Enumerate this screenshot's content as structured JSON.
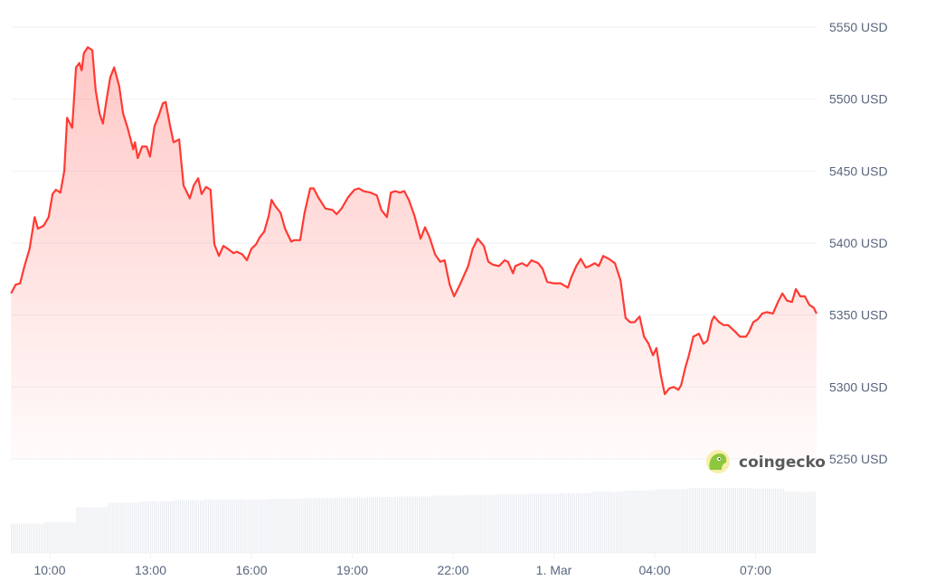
{
  "chart_data": {
    "type": "area",
    "title": "",
    "xlabel": "",
    "ylabel": "",
    "y_unit": "USD",
    "ylim": [
      5200,
      5550
    ],
    "y_ticks": [
      "5550 USD",
      "5500 USD",
      "5450 USD",
      "5400 USD",
      "5350 USD",
      "5300 USD",
      "5250 USD"
    ],
    "y_tick_values": [
      5550,
      5500,
      5450,
      5400,
      5350,
      5300,
      5250
    ],
    "x_ticks": [
      "10:00",
      "13:00",
      "16:00",
      "19:00",
      "22:00",
      "1. Mar",
      "04:00",
      "07:00"
    ],
    "grid": true,
    "line_color": "#ff3a33",
    "fill_color": "#ff3a33",
    "watermark": "coingecko",
    "series": [
      {
        "x": [
          "08:51",
          "08:59",
          "09:07",
          "09:15",
          "09:24",
          "09:33",
          "09:39",
          "09:49",
          "09:58",
          "10:05",
          "10:11",
          "10:19",
          "10:26",
          "10:31",
          "10:40",
          "10:47",
          "10:53",
          "10:57",
          "11:01",
          "11:08",
          "11:16",
          "11:22",
          "11:29",
          "11:35",
          "11:42",
          "11:48",
          "11:55",
          "12:04",
          "12:11",
          "12:19",
          "12:29",
          "12:32",
          "12:37",
          "12:45",
          "12:53",
          "12:59",
          "13:07",
          "13:14",
          "13:22",
          "13:27",
          "13:35",
          "13:41",
          "13:51",
          "13:59",
          "14:10",
          "14:17",
          "14:25",
          "14:31",
          "14:39",
          "14:47",
          "14:54",
          "15:02",
          "15:10",
          "15:18",
          "15:28",
          "15:34",
          "15:44",
          "15:52",
          "16:00",
          "16:08",
          "16:15",
          "16:23",
          "16:31",
          "16:36",
          "16:42",
          "16:52",
          "17:00",
          "17:11",
          "17:17",
          "17:27",
          "17:35",
          "17:45",
          "17:51",
          "17:59",
          "18:12",
          "18:25",
          "18:32",
          "18:41",
          "18:53",
          "19:04",
          "19:12",
          "19:20",
          "19:33",
          "19:44",
          "19:52",
          "20:02",
          "20:09",
          "20:17",
          "20:25",
          "20:33",
          "20:41",
          "20:51",
          "21:02",
          "21:10",
          "21:18",
          "21:28",
          "21:37",
          "21:45",
          "21:54",
          "22:02",
          "22:11",
          "22:19",
          "22:27",
          "22:35",
          "22:44",
          "22:55",
          "23:03",
          "23:11",
          "23:22",
          "23:32",
          "23:38",
          "23:47",
          "23:51",
          "00:03",
          "00:12",
          "00:20",
          "00:32",
          "00:40",
          "00:48",
          "00:59",
          "01:12",
          "01:25",
          "01:31",
          "01:40",
          "01:48",
          "01:57",
          "02:04",
          "02:13",
          "02:20",
          "02:28",
          "02:38",
          "02:49",
          "02:59",
          "03:08",
          "03:16",
          "03:24",
          "03:33",
          "03:41",
          "03:49",
          "03:57",
          "04:03",
          "04:11",
          "04:18",
          "04:26",
          "04:34",
          "04:42",
          "04:47",
          "04:55",
          "05:01",
          "05:09",
          "05:19",
          "05:27",
          "05:34",
          "05:42",
          "05:46",
          "05:55",
          "06:03",
          "06:11",
          "06:22",
          "06:32",
          "06:43",
          "06:48",
          "06:56",
          "07:04",
          "07:12",
          "07:20",
          "07:31",
          "07:40",
          "07:48",
          "07:56",
          "08:05",
          "08:12",
          "08:20",
          "08:28",
          "08:36",
          "08:44",
          "08:49"
        ],
        "y": [
          5365,
          5371,
          5372,
          5384,
          5396,
          5418,
          5410,
          5412,
          5418,
          5434,
          5437,
          5435,
          5450,
          5487,
          5480,
          5522,
          5525,
          5520,
          5532,
          5536,
          5534,
          5506,
          5490,
          5483,
          5501,
          5515,
          5522,
          5509,
          5490,
          5480,
          5465,
          5470,
          5459,
          5467,
          5467,
          5460,
          5481,
          5488,
          5497,
          5498,
          5481,
          5470,
          5472,
          5440,
          5431,
          5440,
          5445,
          5434,
          5439,
          5437,
          5399,
          5391,
          5398,
          5396,
          5393,
          5394,
          5392,
          5388,
          5396,
          5399,
          5404,
          5408,
          5419,
          5430,
          5426,
          5421,
          5410,
          5401,
          5402,
          5402,
          5421,
          5438,
          5438,
          5432,
          5424,
          5423,
          5420,
          5424,
          5432,
          5437,
          5438,
          5436,
          5435,
          5433,
          5423,
          5418,
          5435,
          5436,
          5435,
          5436,
          5430,
          5419,
          5403,
          5411,
          5404,
          5392,
          5387,
          5388,
          5371,
          5363,
          5370,
          5377,
          5384,
          5396,
          5403,
          5398,
          5387,
          5385,
          5384,
          5388,
          5387,
          5379,
          5384,
          5386,
          5384,
          5388,
          5386,
          5382,
          5373,
          5372,
          5372,
          5369,
          5376,
          5384,
          5389,
          5383,
          5384,
          5386,
          5384,
          5391,
          5389,
          5386,
          5374,
          5348,
          5345,
          5345,
          5349,
          5335,
          5330,
          5322,
          5327,
          5308,
          5295,
          5299,
          5300,
          5298,
          5301,
          5314,
          5322,
          5335,
          5337,
          5330,
          5332,
          5346,
          5349,
          5345,
          5343,
          5343,
          5339,
          5335,
          5335,
          5338,
          5345,
          5347,
          5351,
          5352,
          5351,
          5359,
          5365,
          5360,
          5359,
          5368,
          5363,
          5363,
          5357,
          5355,
          5351
        ]
      }
    ],
    "volume_relative_hourly": [
      0.45,
      0.47,
      0.7,
      0.77,
      0.79,
      0.81,
      0.82,
      0.82,
      0.83,
      0.84,
      0.85,
      0.86,
      0.87,
      0.88,
      0.89,
      0.9,
      0.91,
      0.92,
      0.94,
      0.96,
      0.98,
      1.0,
      1.0,
      0.99,
      0.94
    ]
  }
}
